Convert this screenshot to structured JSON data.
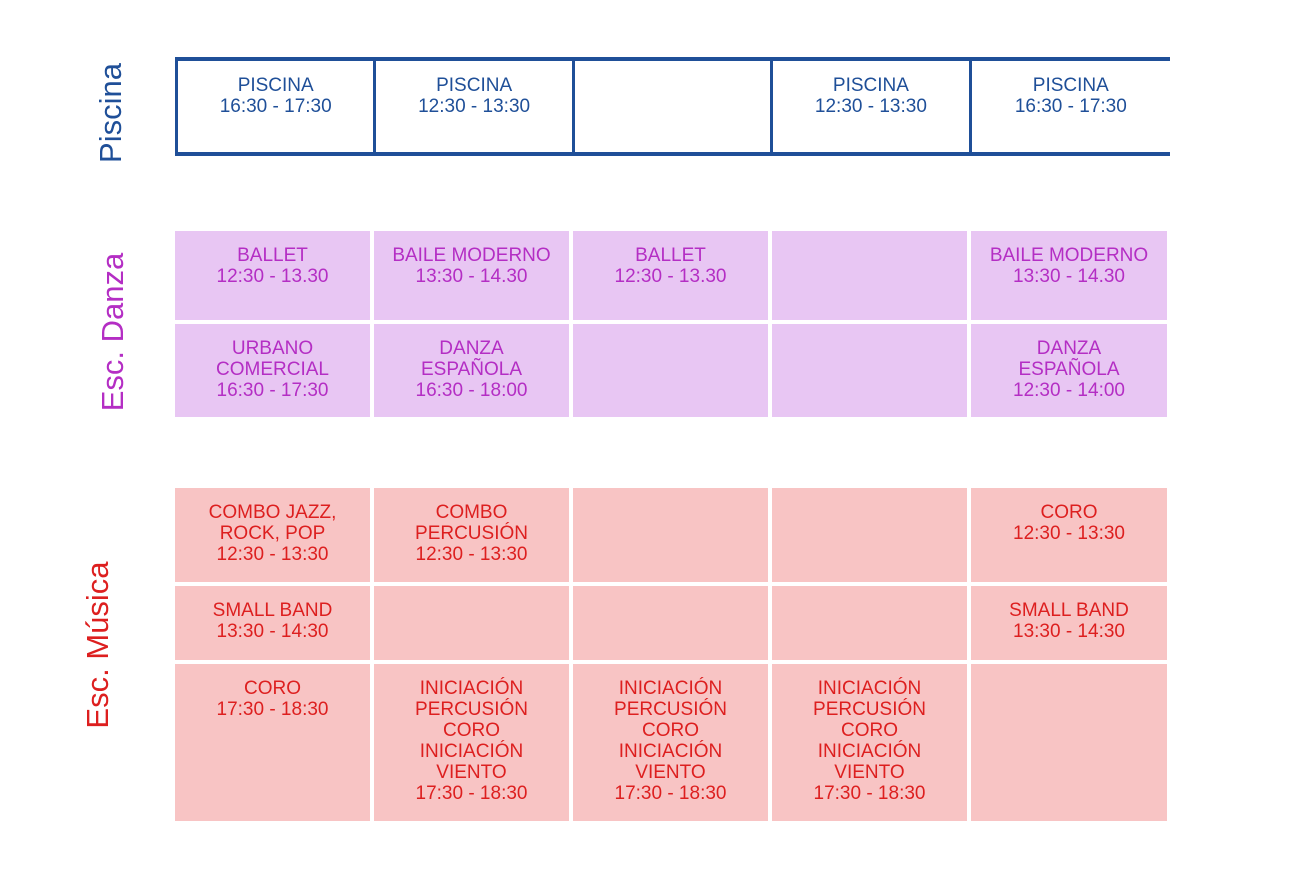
{
  "sections": {
    "piscina": {
      "label": "Piscina",
      "color": "#1f4f98",
      "rows": [
        [
          "PISCINA\n16:30 - 17:30",
          "PISCINA\n12:30 - 13:30",
          "",
          "PISCINA\n12:30 - 13:30",
          "PISCINA\n16:30 - 17:30"
        ]
      ]
    },
    "danza": {
      "label": "Esc. Danza",
      "color": "#b42ec4",
      "background": "#e8c6f3",
      "rows": [
        [
          "BALLET\n12:30 - 13.30",
          "BAILE MODERNO\n13:30 - 14.30",
          "BALLET\n12:30 - 13.30",
          "",
          "BAILE MODERNO\n13:30 - 14.30"
        ],
        [
          "URBANO\nCOMERCIAL\n16:30 - 17:30",
          "DANZA\nESPAÑOLA\n16:30 - 18:00",
          "",
          "",
          "DANZA\nESPAÑOLA\n12:30 - 14:00"
        ]
      ]
    },
    "musica": {
      "label": "Esc. Música",
      "color": "#dd1f1f",
      "background": "#f8c4c4",
      "rows": [
        [
          "COMBO JAZZ,\nROCK, POP\n12:30 - 13:30",
          "COMBO\nPERCUSIÓN\n12:30 - 13:30",
          "",
          "",
          "CORO\n12:30 - 13:30"
        ],
        [
          "SMALL BAND\n13:30 - 14:30",
          "",
          "",
          "",
          "SMALL BAND\n13:30 - 14:30"
        ],
        [
          "CORO\n17:30 - 18:30",
          "INICIACIÓN\nPERCUSIÓN\nCORO\nINICIACIÓN\nVIENTO\n17:30 - 18:30",
          "INICIACIÓN\nPERCUSIÓN\nCORO\nINICIACIÓN\nVIENTO\n17:30 - 18:30",
          "INICIACIÓN\nPERCUSIÓN\nCORO\nINICIACIÓN\nVIENTO\n17:30 - 18:30",
          ""
        ]
      ]
    }
  }
}
